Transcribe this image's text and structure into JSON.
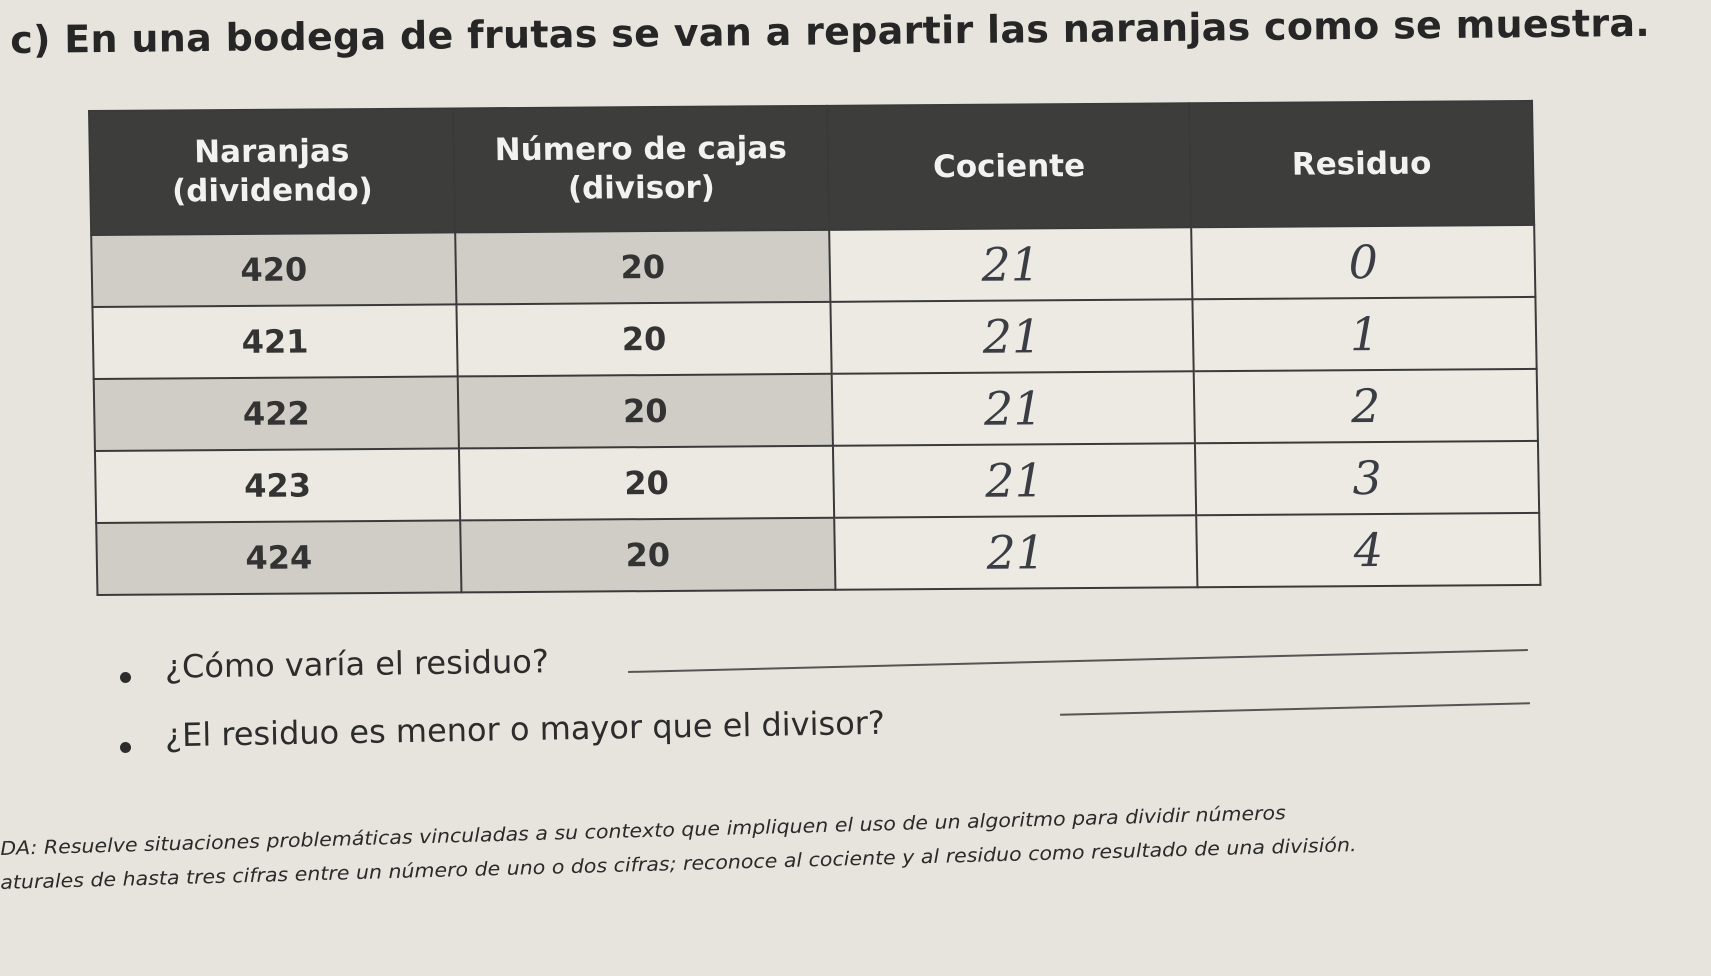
{
  "exercise": {
    "title": "c) En una bodega de frutas se van a repartir las naranjas como se muestra."
  },
  "table": {
    "headers": [
      "Naranjas (dividendo)",
      "Número de cajas (divisor)",
      "Cociente",
      "Residuo"
    ],
    "rows": [
      {
        "naranjas": "420",
        "cajas": "20",
        "cociente": "21",
        "residuo": "0"
      },
      {
        "naranjas": "421",
        "cajas": "20",
        "cociente": "21",
        "residuo": "1"
      },
      {
        "naranjas": "422",
        "cajas": "20",
        "cociente": "21",
        "residuo": "2"
      },
      {
        "naranjas": "423",
        "cajas": "20",
        "cociente": "21",
        "residuo": "3"
      },
      {
        "naranjas": "424",
        "cajas": "20",
        "cociente": "21",
        "residuo": "4"
      }
    ]
  },
  "questions": [
    "¿Cómo varía el residuo?",
    "¿El residuo es menor o mayor que el divisor?"
  ],
  "footer": {
    "line1": "DA: Resuelve situaciones problemáticas vinculadas a su contexto que impliquen el uso de un algoritmo para dividir números",
    "line2": "aturales de hasta tres cifras entre un número de uno o dos cifras; reconoce al cociente y al residuo como resultado de una división."
  }
}
